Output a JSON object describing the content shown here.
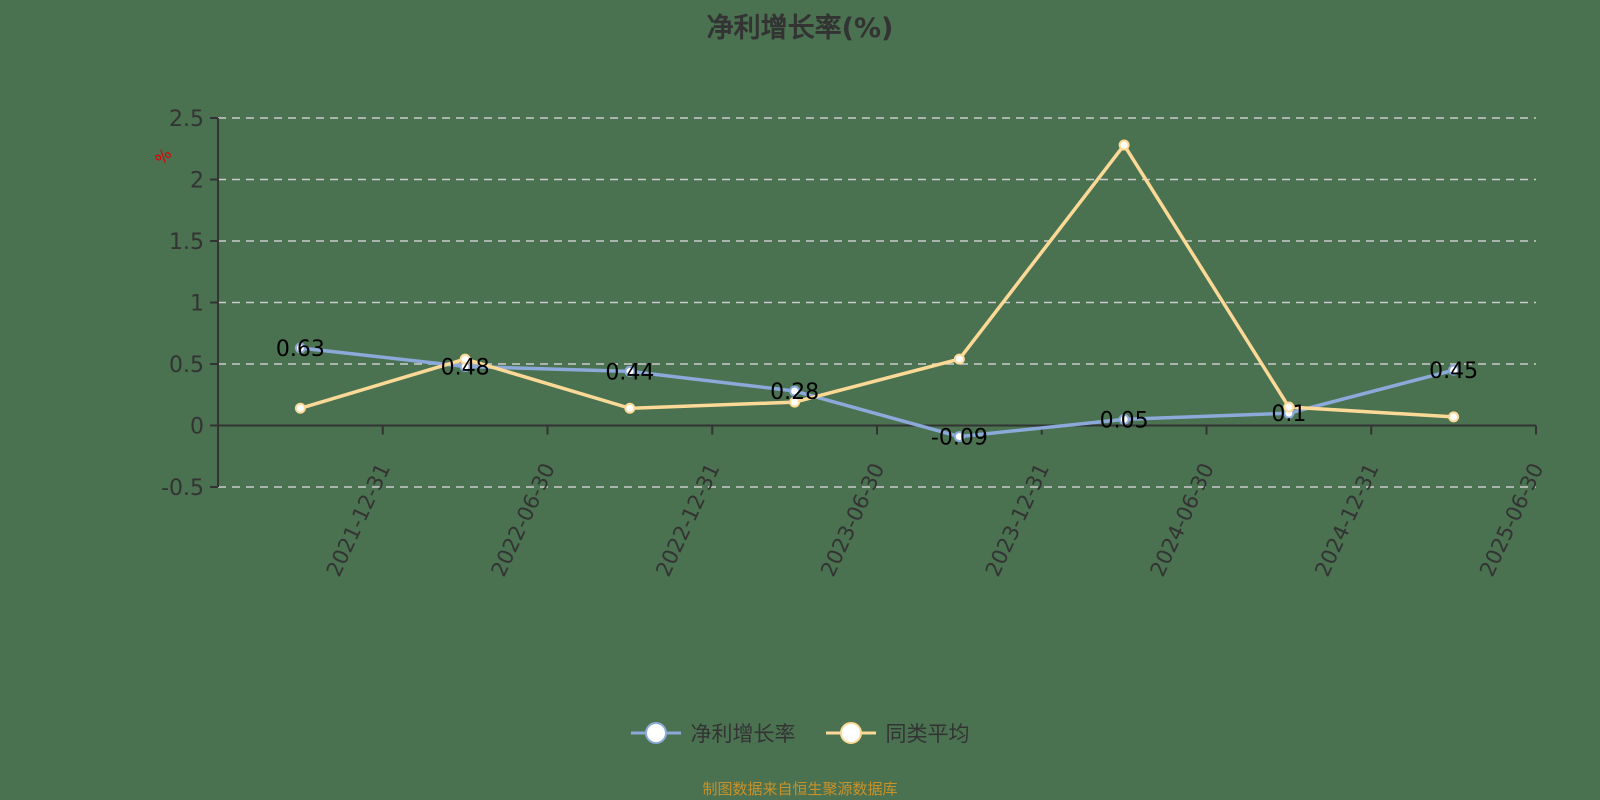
{
  "title": "净利增长率(%)",
  "footer": "制图数据来自恒生聚源数据库",
  "colors": {
    "series1": "#8ba9d9",
    "series2": "#fcd996",
    "axis": "#333333",
    "grid": "#cccccc",
    "background": "#4a7150",
    "footer": "#c8922a",
    "unit": "#e00000"
  },
  "legend": [
    {
      "label": "净利增长率"
    },
    {
      "label": "同类平均"
    }
  ],
  "chart_data": {
    "type": "line",
    "title": "净利增长率(%)",
    "ylabel": "%",
    "xlabel": "",
    "categories": [
      "2021-12-31",
      "2022-06-30",
      "2022-12-31",
      "2023-06-30",
      "2023-12-31",
      "2024-06-30",
      "2024-12-31",
      "2025-06-30"
    ],
    "series": [
      {
        "name": "净利增长率",
        "values": [
          0.63,
          0.48,
          0.44,
          0.28,
          -0.09,
          0.05,
          0.1,
          0.45
        ],
        "labels": [
          "0.63",
          "0.48",
          "0.44",
          "0.28",
          "-0.09",
          "0.05",
          "0.1",
          "0.45"
        ]
      },
      {
        "name": "同类平均",
        "values": [
          0.14,
          0.54,
          0.14,
          0.19,
          0.54,
          2.28,
          0.15,
          0.07
        ]
      }
    ],
    "ylim": [
      -0.5,
      2.5
    ],
    "yticks": [
      "2.5",
      "2",
      "1.5",
      "1",
      "0.5",
      "0",
      "-0.5"
    ],
    "grid": true,
    "legend_position": "bottom"
  }
}
